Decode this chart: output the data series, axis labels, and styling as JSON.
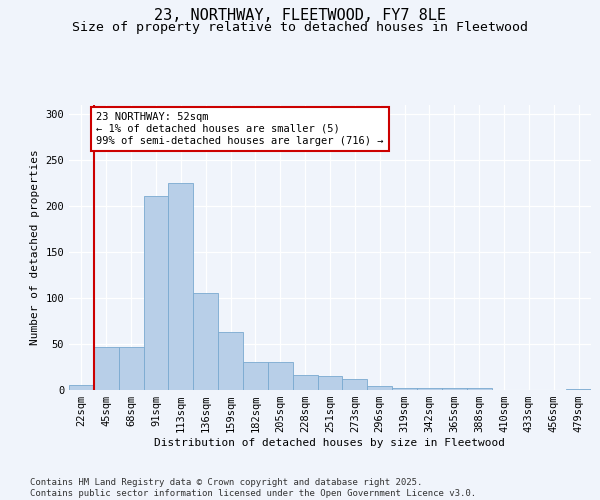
{
  "title": "23, NORTHWAY, FLEETWOOD, FY7 8LE",
  "subtitle": "Size of property relative to detached houses in Fleetwood",
  "xlabel": "Distribution of detached houses by size in Fleetwood",
  "ylabel": "Number of detached properties",
  "categories": [
    "22sqm",
    "45sqm",
    "68sqm",
    "91sqm",
    "113sqm",
    "136sqm",
    "159sqm",
    "182sqm",
    "205sqm",
    "228sqm",
    "251sqm",
    "273sqm",
    "296sqm",
    "319sqm",
    "342sqm",
    "365sqm",
    "388sqm",
    "410sqm",
    "433sqm",
    "456sqm",
    "479sqm"
  ],
  "values": [
    5,
    47,
    47,
    211,
    225,
    106,
    63,
    30,
    30,
    16,
    15,
    12,
    4,
    2,
    2,
    2,
    2,
    0,
    0,
    0,
    1
  ],
  "bar_color": "#b8cfe8",
  "bar_edge_color": "#7aaad0",
  "vline_color": "#cc0000",
  "vline_x_idx": 1,
  "annotation_text": "23 NORTHWAY: 52sqm\n← 1% of detached houses are smaller (5)\n99% of semi-detached houses are larger (716) →",
  "annotation_box_facecolor": "#ffffff",
  "annotation_box_edgecolor": "#cc0000",
  "bg_color": "#f0f4fb",
  "plot_bg_color": "#f0f4fb",
  "footer_text": "Contains HM Land Registry data © Crown copyright and database right 2025.\nContains public sector information licensed under the Open Government Licence v3.0.",
  "ylim": [
    0,
    310
  ],
  "yticks": [
    0,
    50,
    100,
    150,
    200,
    250,
    300
  ],
  "title_fontsize": 11,
  "subtitle_fontsize": 9.5,
  "axis_label_fontsize": 8,
  "tick_fontsize": 7.5,
  "annotation_fontsize": 7.5,
  "footer_fontsize": 6.5
}
